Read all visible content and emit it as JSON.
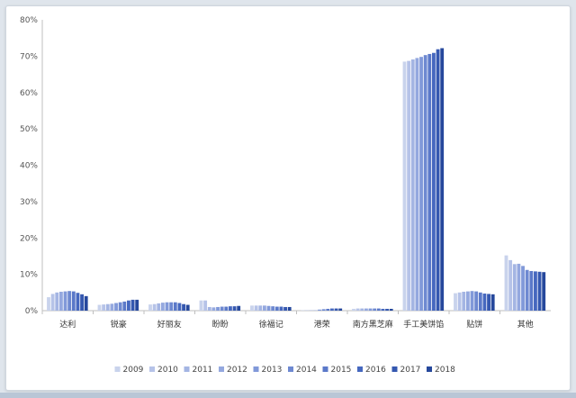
{
  "chart_data": {
    "type": "bar",
    "title": "",
    "xlabel": "",
    "ylabel": "",
    "ylim": [
      0,
      80
    ],
    "y_ticks": [
      "0%",
      "10%",
      "20%",
      "30%",
      "40%",
      "50%",
      "60%",
      "70%",
      "80%"
    ],
    "grid": false,
    "legend_position": "bottom",
    "categories": [
      "达利",
      "锐豪",
      "好丽友",
      "盼盼",
      "徐福记",
      "港荣",
      "南方黑芝麻",
      "手工美饼馅",
      "贴饼",
      "其他"
    ],
    "series": [
      {
        "name": "2009",
        "color": "#c9d3ec",
        "values": [
          3.7,
          1.6,
          1.7,
          2.8,
          1.4,
          0.1,
          0.5,
          68.5,
          4.8,
          15.2
        ]
      },
      {
        "name": "2010",
        "color": "#b6c3e8",
        "values": [
          4.6,
          1.7,
          1.8,
          2.8,
          1.4,
          0.1,
          0.6,
          68.7,
          5.0,
          13.9
        ]
      },
      {
        "name": "2011",
        "color": "#a4b5e3",
        "values": [
          5.0,
          1.8,
          2.0,
          1.0,
          1.4,
          0.1,
          0.6,
          69.1,
          5.2,
          12.8
        ]
      },
      {
        "name": "2012",
        "color": "#94a8df",
        "values": [
          5.2,
          1.9,
          2.2,
          0.9,
          1.4,
          0.1,
          0.6,
          69.5,
          5.3,
          12.9
        ]
      },
      {
        "name": "2013",
        "color": "#8199d9",
        "values": [
          5.3,
          2.1,
          2.3,
          1.0,
          1.3,
          0.3,
          0.6,
          69.8,
          5.4,
          12.3
        ]
      },
      {
        "name": "2014",
        "color": "#6e89d1",
        "values": [
          5.4,
          2.3,
          2.3,
          1.1,
          1.2,
          0.4,
          0.6,
          70.3,
          5.3,
          11.2
        ]
      },
      {
        "name": "2015",
        "color": "#5b79c9",
        "values": [
          5.3,
          2.5,
          2.3,
          1.1,
          1.1,
          0.5,
          0.6,
          70.6,
          5.0,
          10.9
        ]
      },
      {
        "name": "2016",
        "color": "#4668bf",
        "values": [
          4.9,
          2.8,
          2.1,
          1.2,
          1.1,
          0.6,
          0.5,
          70.9,
          4.7,
          10.8
        ]
      },
      {
        "name": "2017",
        "color": "#3558b0",
        "values": [
          4.5,
          3.0,
          1.8,
          1.2,
          1.0,
          0.6,
          0.5,
          71.9,
          4.6,
          10.7
        ]
      },
      {
        "name": "2018",
        "color": "#26489c",
        "values": [
          4.0,
          3.0,
          1.6,
          1.3,
          1.0,
          0.6,
          0.5,
          72.2,
          4.5,
          10.6
        ]
      }
    ]
  }
}
